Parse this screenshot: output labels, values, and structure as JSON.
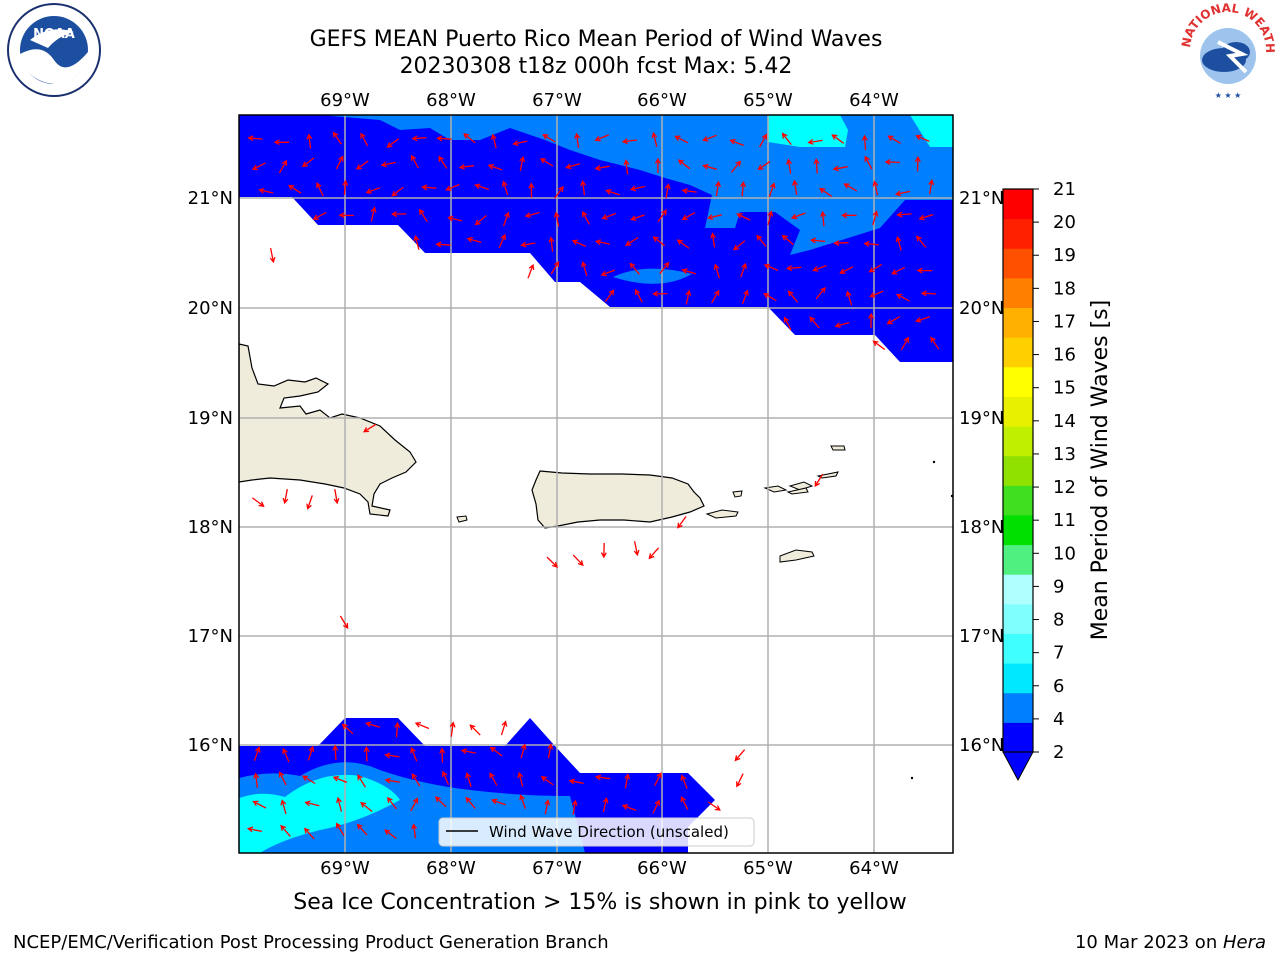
{
  "header": {
    "title_line1": "GEFS MEAN Puerto Rico Mean Period of Wind Waves",
    "title_line2": "20230308 t18z 000h fcst   Max: 5.42"
  },
  "logos": {
    "left": "NOAA",
    "right": "NATIONAL WEATHER SERVICE"
  },
  "map": {
    "lon_labels": [
      "69°W",
      "68°W",
      "67°W",
      "66°W",
      "65°W",
      "64°W"
    ],
    "lat_labels": [
      "21°N",
      "20°N",
      "19°N",
      "18°N",
      "17°N",
      "16°N"
    ],
    "legend_label": "Wind Wave Direction (unscaled)",
    "colors": {
      "land": "#efecdc",
      "ocean": "#ffffff",
      "grid": "#b0b0b0",
      "arrow": "#ff0000"
    }
  },
  "colorbar": {
    "label": "Mean Period of Wind Waves [s]",
    "tick_labels": [
      "2",
      "4",
      "6",
      "7",
      "8",
      "9",
      "10",
      "11",
      "12",
      "13",
      "14",
      "15",
      "16",
      "17",
      "18",
      "19",
      "20",
      "21"
    ],
    "level_colors": [
      "#0000ff",
      "#0080ff",
      "#00e8ff",
      "#40ffff",
      "#80ffff",
      "#b0ffff",
      "#50f080",
      "#00e000",
      "#40e020",
      "#90e000",
      "#c0f000",
      "#e8f000",
      "#ffff00",
      "#ffd000",
      "#ffb000",
      "#ff8000",
      "#ff5000",
      "#ff2000",
      "#ff0000"
    ]
  },
  "chart_data": {
    "type": "heatmap",
    "title": "GEFS MEAN Puerto Rico Mean Period of Wind Waves",
    "subtitle": "20230308 t18z 000h fcst   Max: 5.42",
    "variable_label": "Mean Period of Wind Waves [s]",
    "max_value": 5.42,
    "lon_range": [
      -70,
      -63.3
    ],
    "lat_range": [
      15,
      21.75
    ],
    "lon_ticks": [
      -69,
      -68,
      -67,
      -66,
      -65,
      -64
    ],
    "lat_ticks": [
      21,
      20,
      19,
      18,
      17,
      16
    ],
    "levels": [
      2,
      4,
      6,
      7,
      8,
      9,
      10,
      11,
      12,
      13,
      14,
      15,
      16,
      17,
      18,
      19,
      20,
      21
    ],
    "grid": true,
    "legend_placement": "bottom-center"
  },
  "footer": {
    "sea_ice_note": "Sea Ice Concentration > 15% is shown in pink to yellow",
    "credit_left": "NCEP/EMC/Verification Post Processing Product Generation Branch",
    "credit_date": "10 Mar 2023 on ",
    "credit_host": "Hera"
  }
}
